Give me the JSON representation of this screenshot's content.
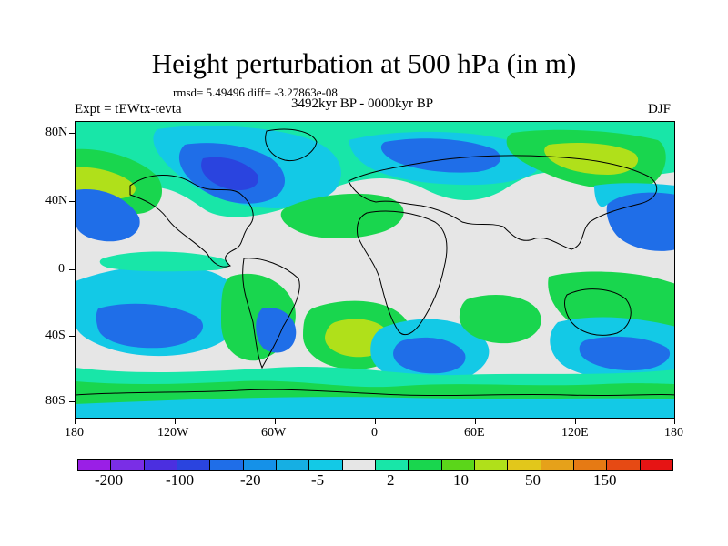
{
  "figure": {
    "title": "Height perturbation at 500 hPa (in m)",
    "stats": "rmsd= 5.49496 diff= -3.27863e-08",
    "experiment": "Expt = tEWtx-tevta",
    "period": "3492kyr BP - 0000kyr BP",
    "season": "DJF"
  },
  "map": {
    "lat_labels": [
      "80N",
      "40N",
      "0",
      "40S",
      "80S"
    ],
    "lon_labels": [
      "180",
      "120W",
      "60W",
      "0",
      "60E",
      "120E",
      "180"
    ]
  },
  "colorbar": {
    "colors": [
      "#9a1fe6",
      "#7a2ee6",
      "#4b2fe0",
      "#2a44df",
      "#1f6ee8",
      "#1591e8",
      "#16afe3",
      "#13c9e6",
      "#e6e6e6",
      "#18e6a8",
      "#19d64e",
      "#5bd61a",
      "#b0e01a",
      "#e2c71b",
      "#e6a11a",
      "#e67a14",
      "#e64a14",
      "#e61414"
    ],
    "labels": [
      "-200",
      "-100",
      "-20",
      "-5",
      "2",
      "10",
      "50",
      "150"
    ],
    "palette": {
      "neutral": "#e6e6e6",
      "ocean_cyan": "#13c9e6",
      "light_blue": "#16afe3",
      "blue": "#1f6ee8",
      "dark_blue": "#2a44df",
      "teal": "#18e6a8",
      "green": "#19d64e",
      "yellow_green": "#b0e01a",
      "coast": "#000000"
    }
  }
}
